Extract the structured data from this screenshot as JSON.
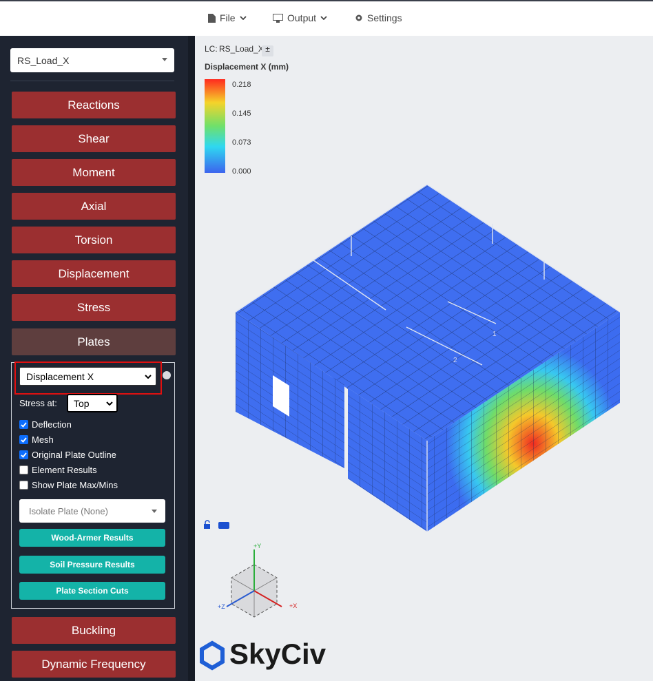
{
  "menu": [
    "File",
    "Output",
    "Settings"
  ],
  "sidebar": {
    "load_case": "RS_Load_X",
    "buttons": [
      "Reactions",
      "Shear",
      "Moment",
      "Axial",
      "Torsion",
      "Displacement",
      "Stress",
      "Plates"
    ],
    "plates_panel": {
      "result_type": "Displacement X",
      "stress_at_label": "Stress at:",
      "stress_at": "Top",
      "checkboxes": [
        {
          "label": "Deflection",
          "checked": true
        },
        {
          "label": "Mesh",
          "checked": true
        },
        {
          "label": "Original Plate Outline",
          "checked": true
        },
        {
          "label": "Element Results",
          "checked": false
        },
        {
          "label": "Show Plate Max/Mins",
          "checked": false
        }
      ],
      "isolate_plate": "Isolate Plate (None)",
      "actions": [
        "Wood-Armer Results",
        "Soil Pressure Results",
        "Plate Section Cuts"
      ]
    },
    "bottom_buttons": [
      "Buckling",
      "Dynamic Frequency"
    ]
  },
  "viewport": {
    "lc_label": "LC:",
    "lc_name": "RS_Load_X",
    "lc_toggle": "±",
    "legend_title": "Displacement X (mm)",
    "legend_values": [
      "0.218",
      "0.145",
      "0.073",
      "0.000"
    ],
    "member_labels": [
      "1",
      "2"
    ],
    "axes": [
      "+Y",
      "+X",
      "+Z"
    ],
    "logo": "SkyCiv"
  }
}
